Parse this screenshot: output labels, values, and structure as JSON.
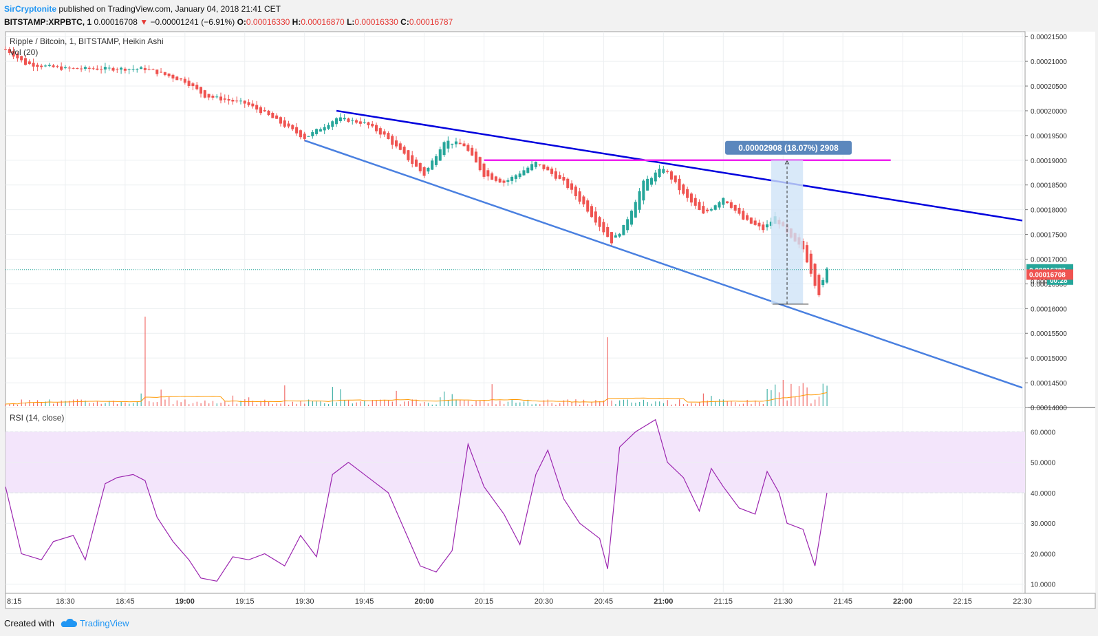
{
  "header": {
    "author": "SirCryptonite",
    "published": "published on TradingView.com, January 04, 2018 21:41 CET",
    "symbol": "BITSTAMP:XRPBTC, 1",
    "last": "0.00016708",
    "change_arrow": "▼",
    "change": "−0.00001241 (−6.91%)",
    "o_label": "O:",
    "o": "0.00016330",
    "h_label": "H:",
    "h": "0.00016870",
    "l_label": "L:",
    "l": "0.00016330",
    "c_label": "C:",
    "c": "0.00016787"
  },
  "footer": {
    "created": "Created with",
    "brand": "TradingView"
  },
  "colors": {
    "up": "#26a69a",
    "down": "#ef5350",
    "upper_line": "#0000dd",
    "lower_line": "#4a80e0",
    "resistance": "#ee22ee",
    "rsi": "#9c27b0",
    "rsi_band": "#f3e5fb",
    "measure": "#cfe3f7",
    "measure_label": "#5b87bd"
  },
  "chart_data": [
    {
      "type": "candlestick",
      "title": "Ripple / Bitcoin, 1, BITSTAMP, Heikin Ashi",
      "indicator_label": "Vol (20)",
      "x_ticks": [
        "8:15",
        "18:30",
        "18:45",
        "19:00",
        "19:15",
        "19:30",
        "19:45",
        "20:00",
        "20:15",
        "20:30",
        "20:45",
        "21:00",
        "21:15",
        "21:30",
        "21:45",
        "22:00",
        "22:15",
        "22:30"
      ],
      "bold_ticks": [
        "19:00",
        "20:00",
        "21:00",
        "22:00"
      ],
      "y_ticks": [
        "0.00021500",
        "0.00021000",
        "0.00020500",
        "0.00020000",
        "0.00019500",
        "0.00019000",
        "0.00018500",
        "0.00018000",
        "0.00017500",
        "0.00017000",
        "0.00016500",
        "0.00016000",
        "0.00015500",
        "0.00015000",
        "0.00014500",
        "0.00014000"
      ],
      "ylim": [
        0.00014,
        0.000216
      ],
      "close_path": [
        [
          "18:15",
          0.0002125
        ],
        [
          "18:20",
          0.0002095
        ],
        [
          "18:30",
          0.0002085
        ],
        [
          "18:40",
          0.0002085
        ],
        [
          "18:50",
          0.0002085
        ],
        [
          "19:00",
          0.000206
        ],
        [
          "19:05",
          0.000203
        ],
        [
          "19:15",
          0.0002015
        ],
        [
          "19:20",
          0.0001995
        ],
        [
          "19:30",
          0.0001945
        ],
        [
          "19:38",
          0.0001985
        ],
        [
          "19:45",
          0.0001975
        ],
        [
          "19:50",
          0.000195
        ],
        [
          "20:00",
          0.000187
        ],
        [
          "20:05",
          0.000194
        ],
        [
          "20:10",
          0.000193
        ],
        [
          "20:15",
          0.000187
        ],
        [
          "20:20",
          0.0001855
        ],
        [
          "20:28",
          0.0001895
        ],
        [
          "20:35",
          0.0001855
        ],
        [
          "20:40",
          0.000181
        ],
        [
          "20:47",
          0.0001735
        ],
        [
          "20:50",
          0.0001765
        ],
        [
          "20:55",
          0.0001855
        ],
        [
          "21:00",
          0.0001885
        ],
        [
          "21:05",
          0.000183
        ],
        [
          "21:10",
          0.000179
        ],
        [
          "21:15",
          0.0001825
        ],
        [
          "21:20",
          0.000178
        ],
        [
          "21:25",
          0.000176
        ],
        [
          "21:28",
          0.0001785
        ],
        [
          "21:32",
          0.000174
        ],
        [
          "21:35",
          0.000172
        ],
        [
          "21:38",
          0.000165
        ],
        [
          "21:39",
          0.000163
        ],
        [
          "21:41",
          0.00016787
        ]
      ],
      "last_close": "0.00016787",
      "last_close_value": 0.00016787,
      "bar_countdown": "00:28",
      "current_price": "0.00016708",
      "current_price_value": 0.00016708,
      "hidden_label": "0.0000",
      "drawings": {
        "upper_trendline": {
          "from": [
            "19:38",
            0.0002
          ],
          "to": [
            "22:30",
            0.0001778
          ]
        },
        "lower_trendline": {
          "from": [
            "19:30",
            0.000194
          ],
          "to": [
            "22:30",
            0.000144
          ]
        },
        "resistance": {
          "from": [
            "20:15",
            0.00019
          ],
          "to": [
            "21:57",
            0.00019
          ]
        },
        "measure": {
          "from": [
            "21:27",
            0.0001609
          ],
          "to": [
            "21:35",
            0.00019
          ],
          "label": "0.00002908 (18.07%) 2908"
        }
      },
      "volume": {
        "max_spike": "18:50"
      }
    },
    {
      "type": "line",
      "title": "RSI (14, close)",
      "y_ticks": [
        "60.0000",
        "50.0000",
        "40.0000",
        "30.0000",
        "20.0000",
        "10.0000"
      ],
      "ylim": [
        7,
        68
      ],
      "band": [
        40,
        60
      ],
      "x": [
        "18:15",
        "18:19",
        "18:24",
        "18:27",
        "18:32",
        "18:35",
        "18:40",
        "18:43",
        "18:47",
        "18:50",
        "18:53",
        "18:57",
        "19:01",
        "19:04",
        "19:08",
        "19:12",
        "19:16",
        "19:20",
        "19:25",
        "19:29",
        "19:33",
        "19:37",
        "19:41",
        "19:46",
        "19:51",
        "19:55",
        "19:59",
        "20:03",
        "20:07",
        "20:11",
        "20:15",
        "20:20",
        "20:24",
        "20:28",
        "20:31",
        "20:35",
        "20:39",
        "20:44",
        "20:46",
        "20:49",
        "20:53",
        "20:58",
        "21:01",
        "21:05",
        "21:09",
        "21:12",
        "21:15",
        "21:19",
        "21:23",
        "21:26",
        "21:29",
        "21:31",
        "21:35",
        "21:38",
        "21:41"
      ],
      "values": [
        42,
        20,
        18,
        24,
        26,
        18,
        43,
        45,
        46,
        44,
        32,
        24,
        18,
        12,
        11,
        19,
        18,
        20,
        16,
        26,
        19,
        46,
        50,
        45,
        40,
        28,
        16,
        14,
        21,
        56,
        42,
        33,
        23,
        46,
        54,
        38,
        30,
        25,
        15,
        55,
        60,
        64,
        50,
        45,
        34,
        48,
        42,
        35,
        33,
        47,
        40,
        30,
        28,
        16,
        40
      ]
    }
  ]
}
